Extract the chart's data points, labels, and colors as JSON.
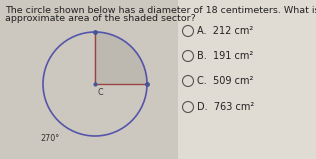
{
  "title_line1": "The circle shown below has a diameter of 18 centimeters. What is the",
  "title_line2": "approximate area of the shaded sector?",
  "bg_color_left": "#cdc8bf",
  "bg_color_right": "#dedad4",
  "circle_color": "#cdc8bf",
  "sector_color": "#bdb8b0",
  "circle_edge_color": "#5555aa",
  "circle_edge_width": 1.2,
  "radius_line_color": "#994444",
  "angle_label": "270°",
  "center_label": "C",
  "choices": [
    {
      "letter": "A.",
      "text": "212 cm²"
    },
    {
      "letter": "B.",
      "text": "191 cm²"
    },
    {
      "letter": "C.",
      "text": "509 cm²"
    },
    {
      "letter": "D.",
      "text": "763 cm²"
    }
  ],
  "text_color": "#222222",
  "font_size_title": 6.8,
  "font_size_choices": 7.0,
  "font_size_labels": 5.8
}
